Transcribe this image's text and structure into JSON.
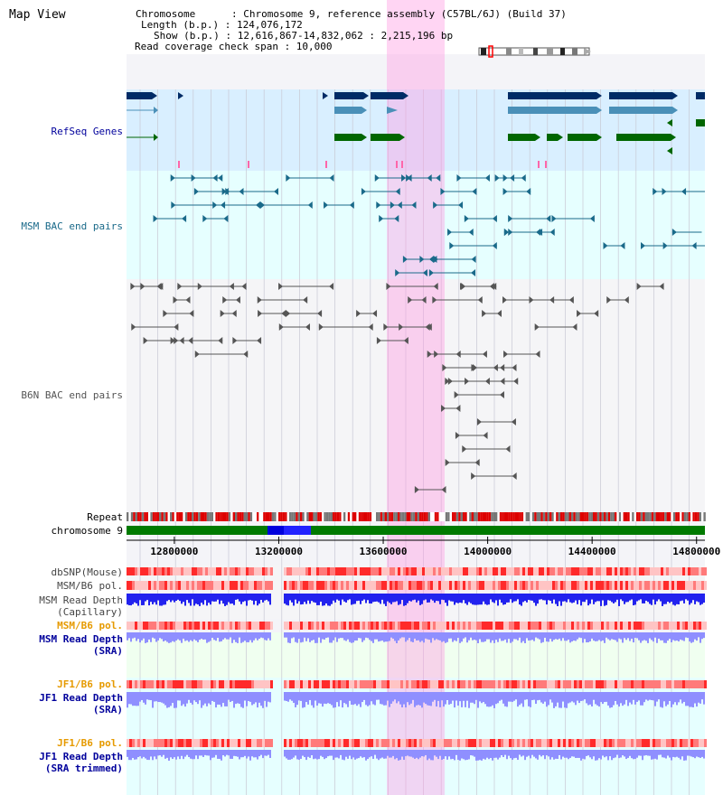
{
  "title": "Map View",
  "info": {
    "chromosome": "Chromosome      : Chromosome 9, reference assembly (C57BL/6J) (Build 37)",
    "length": "Length (b.p.) : 124,076,172",
    "show": "Show (b.p.) : 12,616,867-14,832,062 : 2,215,196 bp",
    "coverage": "Read coverage check span : 10,000"
  },
  "tracks": {
    "refseq": "RefSeq Genes",
    "msm_bac": "MSM BAC end pairs",
    "b6n_bac": "B6N BAC end pairs",
    "repeat": "Repeat",
    "chromosome": "chromosome 9",
    "dbsnp": "dbSNP(Mouse)",
    "msm_b6_pol": "MSM/B6 pol.",
    "msm_depth_cap_1": "MSM Read Depth",
    "msm_depth_cap_2": "(Capillary)",
    "msm_b6_pol_sra": "MSM/B6 pol.",
    "msm_depth_sra_1": "MSM Read Depth",
    "msm_depth_sra_2": "(SRA)",
    "jf1_b6_pol": "JF1/B6 pol.",
    "jf1_depth_sra_1": "JF1 Read Depth",
    "jf1_depth_sra_2": "(SRA)",
    "jf1_b6_pol_2": "JF1/B6 pol.",
    "jf1_depth_trim_1": "JF1 Read Depth",
    "jf1_depth_trim_2": "(SRA trimmed)"
  },
  "axis_ticks": [
    "12800000",
    "13200000",
    "13600000",
    "14000000",
    "14400000",
    "14800000"
  ],
  "colors": {
    "refseq_bg": "#d9efff",
    "msm_bg": "#e6ffff",
    "highlight": "#ff9be3",
    "gene_dark": "#002b66",
    "gene_mid": "#4a90b8",
    "gene_green": "#006600",
    "msm_pair": "#1a6a8a",
    "b6n_pair": "#555555",
    "chrom_green": "#007a00",
    "chrom_blue": "#0000dd",
    "label_blue": "#00009c",
    "label_orange": "#e69a00",
    "depth_blue": "#3a3aff",
    "depth_light": "#8f8fff"
  }
}
